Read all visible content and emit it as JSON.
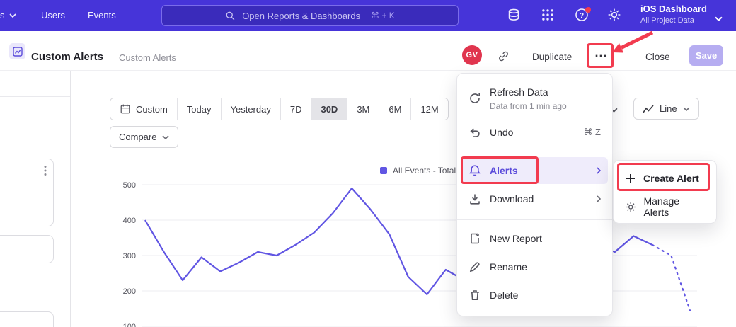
{
  "topnav": {
    "partial_label": "s",
    "nav_items": [
      "Users",
      "Events"
    ],
    "search": {
      "label": "Open Reports & Dashboards",
      "shortcut": "⌘ + K"
    },
    "project_name": "iOS Dashboard",
    "project_subtitle": "All Project Data"
  },
  "header": {
    "title": "Custom Alerts",
    "breadcrumb": "Custom Alerts",
    "avatar_initials": "GV",
    "duplicate_label": "Duplicate",
    "more_glyph": "⋯",
    "close_label": "Close",
    "save_label": "Save"
  },
  "toolbar": {
    "date_buttons": [
      "Custom",
      "Today",
      "Yesterday",
      "7D",
      "30D",
      "3M",
      "6M",
      "12M"
    ],
    "selected_range": "30D",
    "compare_label": "Compare",
    "chart_type_label": "Line"
  },
  "legend": {
    "label": "All Events - Total",
    "color": "#6156E3"
  },
  "menu": {
    "items": [
      {
        "label": "Refresh Data",
        "subtitle": "Data from 1 min ago"
      },
      {
        "label": "Undo",
        "shortcut": "⌘ Z"
      },
      {
        "label": "Alerts"
      },
      {
        "label": "Download"
      },
      {
        "label": "New Report"
      },
      {
        "label": "Rename"
      },
      {
        "label": "Delete"
      }
    ]
  },
  "submenu": {
    "items": [
      {
        "label": "Create Alert"
      },
      {
        "label": "Manage Alerts"
      }
    ]
  },
  "colors": {
    "accent": "#5B4BDB",
    "annotation": "#F23B4F",
    "topnav": "#4634D9"
  },
  "chart_data": {
    "type": "line",
    "title": "All Events - Total (30D)",
    "xlabel": "day",
    "ylabel": "",
    "x_count": 30,
    "series": [
      {
        "name": "All Events - Total",
        "values": [
          400,
          310,
          230,
          295,
          255,
          280,
          310,
          300,
          330,
          365,
          420,
          490,
          430,
          360,
          240,
          190,
          260,
          230,
          270,
          310,
          290,
          320,
          300,
          340,
          330,
          310,
          355,
          330,
          300,
          145
        ]
      }
    ],
    "yticks": [
      100,
      200,
      300,
      400,
      500
    ],
    "ylim": [
      100,
      500
    ],
    "grid": true,
    "legend_position": "top",
    "line_color": "#6156E3",
    "dashed_tail_from_index": 27
  }
}
